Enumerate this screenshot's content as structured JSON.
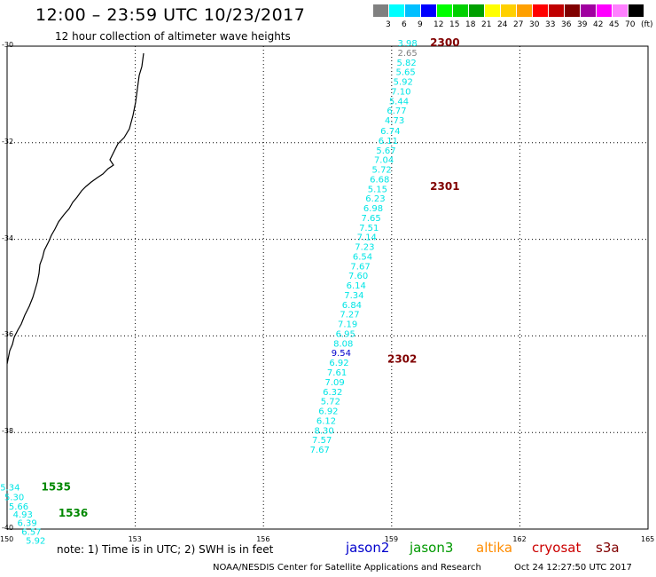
{
  "header": {
    "title": "12:00 – 23:59 UTC 10/23/2017",
    "subtitle": "12 hour collection of altimeter wave heights"
  },
  "scale": {
    "colors": [
      "#808080",
      "#00ffff",
      "#00bfff",
      "#0000ff",
      "#00ff00",
      "#00d000",
      "#00a000",
      "#ffff00",
      "#ffd000",
      "#ffa000",
      "#ff0000",
      "#c00000",
      "#800000",
      "#a000a0",
      "#ff00ff",
      "#ff80ff",
      "#000000"
    ],
    "labels": [
      "3",
      "6",
      "9",
      "12",
      "15",
      "18",
      "21",
      "24",
      "27",
      "30",
      "33",
      "36",
      "39",
      "42",
      "45",
      "70",
      "(ft)"
    ]
  },
  "axes": {
    "lat_labels": [
      "-30",
      "-32",
      "-34",
      "-36",
      "-38",
      "-40"
    ],
    "lon_labels": [
      "150",
      "153",
      "156",
      "159",
      "162",
      "165"
    ],
    "lat_range": [
      -40,
      -30
    ],
    "lon_range": [
      150,
      165
    ]
  },
  "time_labels": [
    {
      "text": "2300",
      "lon": 159.9,
      "lat": -30.0
    },
    {
      "text": "2301",
      "lon": 159.9,
      "lat": -32.98
    },
    {
      "text": "2302",
      "lon": 158.9,
      "lat": -36.55
    },
    {
      "text": "1535",
      "lon": 150.8,
      "lat": -39.2
    },
    {
      "text": "1536",
      "lon": 151.2,
      "lat": -39.74
    }
  ],
  "track_a": [
    {
      "v": "3.98",
      "lon": 159.6,
      "lat": -30.0,
      "c": "#00e5e5"
    },
    {
      "v": "2.65",
      "lon": 159.6,
      "lat": -30.2,
      "c": "#808080"
    },
    {
      "v": "5.82",
      "lon": 159.58,
      "lat": -30.4,
      "c": "#00e5e5"
    },
    {
      "v": "5.65",
      "lon": 159.56,
      "lat": -30.6,
      "c": "#00e5e5"
    },
    {
      "v": "5.92",
      "lon": 159.5,
      "lat": -30.8,
      "c": "#00e5e5"
    },
    {
      "v": "7.10",
      "lon": 159.45,
      "lat": -31.0,
      "c": "#00e5e5"
    },
    {
      "v": "5.44",
      "lon": 159.4,
      "lat": -31.2,
      "c": "#00e5e5"
    },
    {
      "v": "6.77",
      "lon": 159.35,
      "lat": -31.4,
      "c": "#00e5e5"
    },
    {
      "v": "4.73",
      "lon": 159.3,
      "lat": -31.6,
      "c": "#00e5e5"
    },
    {
      "v": "6.74",
      "lon": 159.2,
      "lat": -31.82,
      "c": "#00e5e5"
    },
    {
      "v": "6.11",
      "lon": 159.15,
      "lat": -32.02,
      "c": "#00e5e5"
    },
    {
      "v": "5.67",
      "lon": 159.1,
      "lat": -32.22,
      "c": "#00e5e5"
    },
    {
      "v": "7.04",
      "lon": 159.05,
      "lat": -32.42,
      "c": "#00e5e5"
    },
    {
      "v": "5.72",
      "lon": 159.0,
      "lat": -32.62,
      "c": "#00e5e5"
    },
    {
      "v": "6.68",
      "lon": 158.95,
      "lat": -32.82,
      "c": "#00e5e5"
    },
    {
      "v": "5.15",
      "lon": 158.9,
      "lat": -33.02,
      "c": "#00e5e5"
    },
    {
      "v": "6.23",
      "lon": 158.85,
      "lat": -33.22,
      "c": "#00e5e5"
    },
    {
      "v": "6.98",
      "lon": 158.8,
      "lat": -33.42,
      "c": "#00e5e5"
    },
    {
      "v": "7.65",
      "lon": 158.75,
      "lat": -33.62,
      "c": "#00e5e5"
    },
    {
      "v": "7.51",
      "lon": 158.7,
      "lat": -33.82,
      "c": "#00e5e5"
    },
    {
      "v": "7.14",
      "lon": 158.65,
      "lat": -34.02,
      "c": "#00e5e5"
    },
    {
      "v": "7.23",
      "lon": 158.6,
      "lat": -34.22,
      "c": "#00e5e5"
    },
    {
      "v": "6.54",
      "lon": 158.55,
      "lat": -34.42,
      "c": "#00e5e5"
    },
    {
      "v": "7.67",
      "lon": 158.5,
      "lat": -34.62,
      "c": "#00e5e5"
    },
    {
      "v": "7.60",
      "lon": 158.45,
      "lat": -34.82,
      "c": "#00e5e5"
    },
    {
      "v": "6.14",
      "lon": 158.4,
      "lat": -35.02,
      "c": "#00e5e5"
    },
    {
      "v": "7.34",
      "lon": 158.35,
      "lat": -35.22,
      "c": "#00e5e5"
    },
    {
      "v": "6.84",
      "lon": 158.3,
      "lat": -35.42,
      "c": "#00e5e5"
    },
    {
      "v": "7.27",
      "lon": 158.25,
      "lat": -35.62,
      "c": "#00e5e5"
    },
    {
      "v": "7.19",
      "lon": 158.2,
      "lat": -35.82,
      "c": "#00e5e5"
    },
    {
      "v": "6.95",
      "lon": 158.15,
      "lat": -36.02,
      "c": "#00e5e5"
    },
    {
      "v": "8.08",
      "lon": 158.1,
      "lat": -36.22,
      "c": "#00e5e5"
    },
    {
      "v": "9.54",
      "lon": 158.05,
      "lat": -36.42,
      "c": "#0000cc"
    },
    {
      "v": "6.92",
      "lon": 158.0,
      "lat": -36.62,
      "c": "#00e5e5"
    },
    {
      "v": "7.61",
      "lon": 157.95,
      "lat": -36.82,
      "c": "#00e5e5"
    },
    {
      "v": "7.09",
      "lon": 157.9,
      "lat": -37.02,
      "c": "#00e5e5"
    },
    {
      "v": "6.32",
      "lon": 157.85,
      "lat": -37.22,
      "c": "#00e5e5"
    },
    {
      "v": "5.72",
      "lon": 157.8,
      "lat": -37.42,
      "c": "#00e5e5"
    },
    {
      "v": "6.92",
      "lon": 157.75,
      "lat": -37.62,
      "c": "#00e5e5"
    },
    {
      "v": "6.12",
      "lon": 157.7,
      "lat": -37.82,
      "c": "#00e5e5"
    },
    {
      "v": "8.30",
      "lon": 157.65,
      "lat": -38.02,
      "c": "#00e5e5"
    },
    {
      "v": "7.57",
      "lon": 157.6,
      "lat": -38.22,
      "c": "#00e5e5"
    },
    {
      "v": "7.67",
      "lon": 157.55,
      "lat": -38.42,
      "c": "#00e5e5"
    }
  ],
  "track_b": [
    {
      "v": "5.34",
      "lon": 150.3,
      "lat": -39.2,
      "c": "#00e5e5"
    },
    {
      "v": "5.30",
      "lon": 150.4,
      "lat": -39.4,
      "c": "#00e5e5"
    },
    {
      "v": "5.66",
      "lon": 150.5,
      "lat": -39.6,
      "c": "#00e5e5"
    },
    {
      "v": "4.93",
      "lon": 150.6,
      "lat": -39.76,
      "c": "#00e5e5"
    },
    {
      "v": "6.39",
      "lon": 150.7,
      "lat": -39.94,
      "c": "#00e5e5"
    },
    {
      "v": "6.57",
      "lon": 150.8,
      "lat": -40.12,
      "c": "#00e5e5"
    },
    {
      "v": "5.92",
      "lon": 150.9,
      "lat": -40.3,
      "c": "#00e5e5"
    }
  ],
  "note": "note: 1) Time is in UTC; 2) SWH is in feet",
  "satellites": [
    {
      "name": "jason2",
      "color": "#0000cc"
    },
    {
      "name": "jason3",
      "color": "#009900"
    },
    {
      "name": "altika",
      "color": "#ff8c00"
    },
    {
      "name": "cryosat",
      "color": "#cc0000"
    },
    {
      "name": "s3a",
      "color": "#800000"
    }
  ],
  "footer": {
    "credit": "NOAA/NESDIS Center for Satellite Applications and Research",
    "timestamp": "Oct 24 12:27:50 UTC 2017"
  }
}
